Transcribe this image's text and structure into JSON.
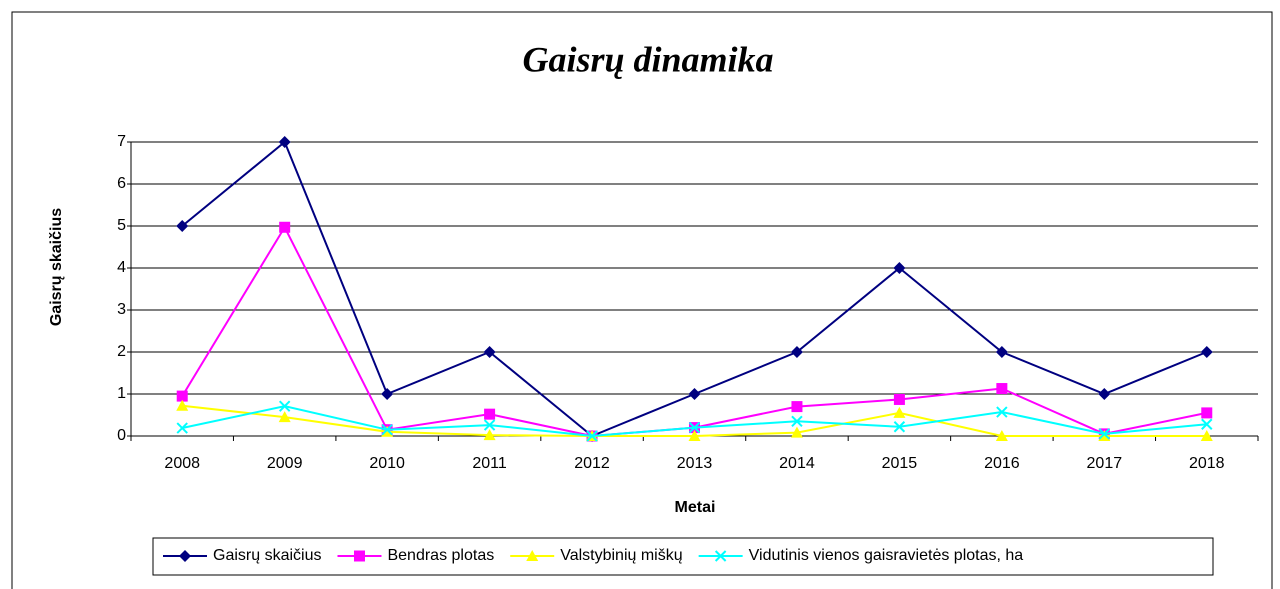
{
  "chart_data": {
    "type": "line",
    "title": "Gaisrų dinamika",
    "x_label": "Metai",
    "y_label": "Gaisrų skaičius",
    "categories": [
      "2008",
      "2009",
      "2010",
      "2011",
      "2012",
      "2013",
      "2014",
      "2015",
      "2016",
      "2017",
      "2018"
    ],
    "series": [
      {
        "name": "Gaisrų skaičius",
        "color": "#000080",
        "marker": "diamond",
        "values": [
          5,
          7,
          1,
          2,
          0,
          1,
          2,
          4,
          2,
          1,
          2
        ]
      },
      {
        "name": "Bendras plotas",
        "color": "#ff00ff",
        "marker": "square",
        "values": [
          0.95,
          4.97,
          0.15,
          0.52,
          0,
          0.2,
          0.7,
          0.87,
          1.13,
          0.05,
          0.55
        ]
      },
      {
        "name": "Valstybinių miškų",
        "color": "#ffff00",
        "marker": "triangle",
        "values": [
          0.72,
          0.45,
          0.1,
          0.02,
          0,
          0,
          0.08,
          0.55,
          0,
          0,
          0
        ]
      },
      {
        "name": "Vidutinis vienos gaisravietės plotas, ha",
        "color": "#00ffff",
        "marker": "x",
        "values": [
          0.19,
          0.71,
          0.15,
          0.26,
          0,
          0.2,
          0.35,
          0.22,
          0.57,
          0.05,
          0.28
        ]
      }
    ],
    "ylim": [
      0,
      7
    ],
    "yticks": [
      0,
      1,
      2,
      3,
      4,
      5,
      6,
      7
    ],
    "grid": true,
    "legend": "bottom"
  }
}
